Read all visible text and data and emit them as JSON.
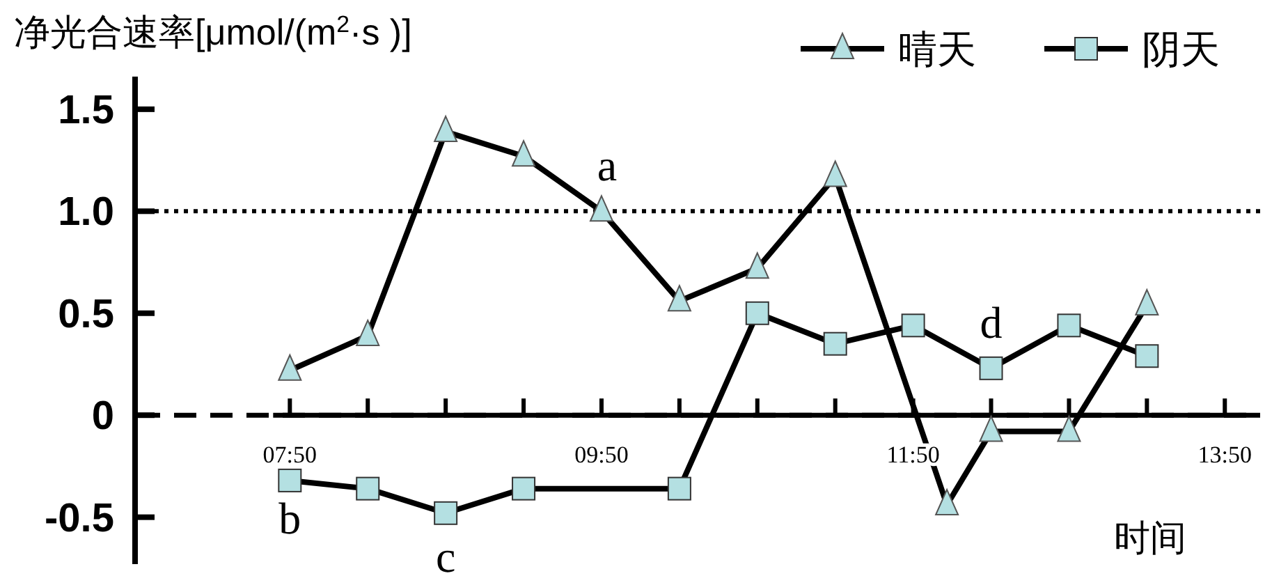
{
  "chart_data": {
    "type": "line",
    "ylabel": "净光合速率[μmol/(m$^{2}$·s )]",
    "xlabel": "时间",
    "legend": "top right",
    "line_style": "solid",
    "xlim": [
      6.84,
      14.06
    ],
    "xticks": [
      {
        "value": 7.8333,
        "label": "07:50"
      },
      {
        "value": 8.3333,
        "label": null
      },
      {
        "value": 8.8333,
        "label": null
      },
      {
        "value": 9.3333,
        "label": null
      },
      {
        "value": 9.8333,
        "label": "09:50"
      },
      {
        "value": 10.3333,
        "label": null
      },
      {
        "value": 10.8333,
        "label": null
      },
      {
        "value": 11.3333,
        "label": null
      },
      {
        "value": 11.8333,
        "label": "11:50"
      },
      {
        "value": 12.3333,
        "label": null
      },
      {
        "value": 12.8333,
        "label": null
      },
      {
        "value": 13.3333,
        "label": null
      },
      {
        "value": 13.8333,
        "label": "13:50"
      }
    ],
    "ylim": [
      -0.73,
      1.66
    ],
    "yticks": [
      1.5,
      {
        "value": 1,
        "label": "1.0"
      },
      0.5,
      0,
      -0.5
    ],
    "series": [
      {
        "name": "晴天",
        "color": "#b4e0e2",
        "marker": "triangle",
        "x": [
          7.8333,
          8.3333,
          8.8333,
          9.3333,
          9.8333,
          10.3333,
          10.8333,
          11.3333,
          12.05,
          12.3333,
          12.8333,
          13.3333
        ],
        "values": [
          0.22,
          0.39,
          1.39,
          1.27,
          1.0,
          0.56,
          0.72,
          1.17,
          -0.44,
          -0.08,
          -0.08,
          0.54
        ]
      },
      {
        "name": "阴天",
        "color": "#b4e0e2",
        "marker": "square",
        "x": [
          7.8333,
          8.3333,
          8.8333,
          9.3333,
          10.3333,
          10.8333,
          11.3333,
          11.8333,
          12.3333,
          12.8333,
          13.3333
        ],
        "values": [
          -0.32,
          -0.36,
          -0.48,
          -0.36,
          -0.36,
          0.5,
          0.35,
          0.44,
          0.23,
          0.44,
          0.29
        ]
      }
    ],
    "ref_lines": [
      {
        "axis": "y",
        "value": 1,
        "line_style": "dotted"
      },
      {
        "axis": "y",
        "value": 0,
        "line_style": "dashed"
      }
    ],
    "annotations": [
      {
        "text": "a",
        "x": 9.8333,
        "y": 1.0
      },
      {
        "text": "b",
        "x": 7.8333,
        "y": -0.32
      },
      {
        "text": "c",
        "x": 8.8333,
        "y": -0.48
      },
      {
        "text": "d",
        "x": 12.3333,
        "y": 0.23
      }
    ]
  }
}
